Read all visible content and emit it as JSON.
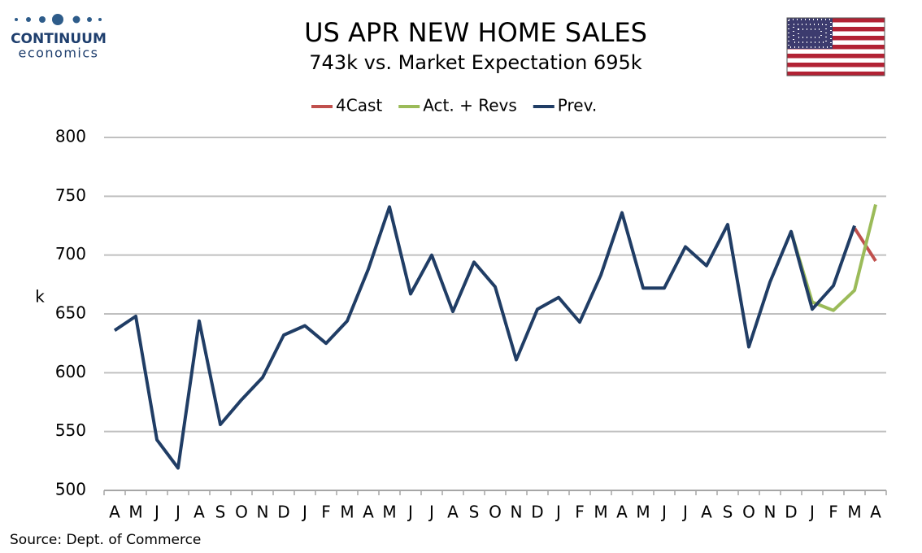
{
  "chart_data": {
    "type": "line",
    "title": "US APR NEW HOME SALES",
    "subtitle": "743k vs. Market Expectation 695k",
    "brand": "CONTINUUM",
    "brand_sub": "economics",
    "source": "Source: Dept. of Commerce",
    "y_label": "k",
    "categories": [
      "A",
      "M",
      "J",
      "J",
      "A",
      "S",
      "O",
      "N",
      "D",
      "J",
      "F",
      "M",
      "A",
      "M",
      "J",
      "J",
      "A",
      "S",
      "O",
      "N",
      "D",
      "J",
      "F",
      "M",
      "A",
      "M",
      "J",
      "J",
      "A",
      "S",
      "O",
      "N",
      "D",
      "J",
      "F",
      "M",
      "A"
    ],
    "series": [
      {
        "name": "4Cast",
        "color": "#c0504d",
        "values": [
          null,
          null,
          null,
          null,
          null,
          null,
          null,
          null,
          null,
          null,
          null,
          null,
          null,
          null,
          null,
          null,
          null,
          null,
          null,
          null,
          null,
          null,
          null,
          null,
          null,
          null,
          null,
          null,
          null,
          null,
          null,
          null,
          null,
          null,
          null,
          723,
          695
        ]
      },
      {
        "name": "Act. + Revs",
        "color": "#9bbb59",
        "values": [
          null,
          null,
          null,
          null,
          null,
          null,
          null,
          null,
          null,
          null,
          null,
          null,
          null,
          null,
          null,
          null,
          null,
          null,
          null,
          null,
          null,
          null,
          null,
          null,
          null,
          null,
          null,
          null,
          null,
          null,
          null,
          null,
          720,
          660,
          653,
          670,
          743
        ]
      },
      {
        "name": "Prev.",
        "color": "#203d65",
        "values": [
          636,
          648,
          543,
          519,
          644,
          556,
          577,
          596,
          632,
          640,
          625,
          644,
          688,
          741,
          667,
          700,
          652,
          694,
          673,
          611,
          654,
          664,
          643,
          683,
          736,
          672,
          672,
          707,
          691,
          726,
          622,
          677,
          720,
          654,
          674,
          725,
          null
        ]
      }
    ],
    "ylim": [
      500,
      800
    ],
    "yticks": [
      500,
      550,
      600,
      650,
      700,
      750,
      800
    ],
    "grid": true,
    "legend": "top"
  }
}
